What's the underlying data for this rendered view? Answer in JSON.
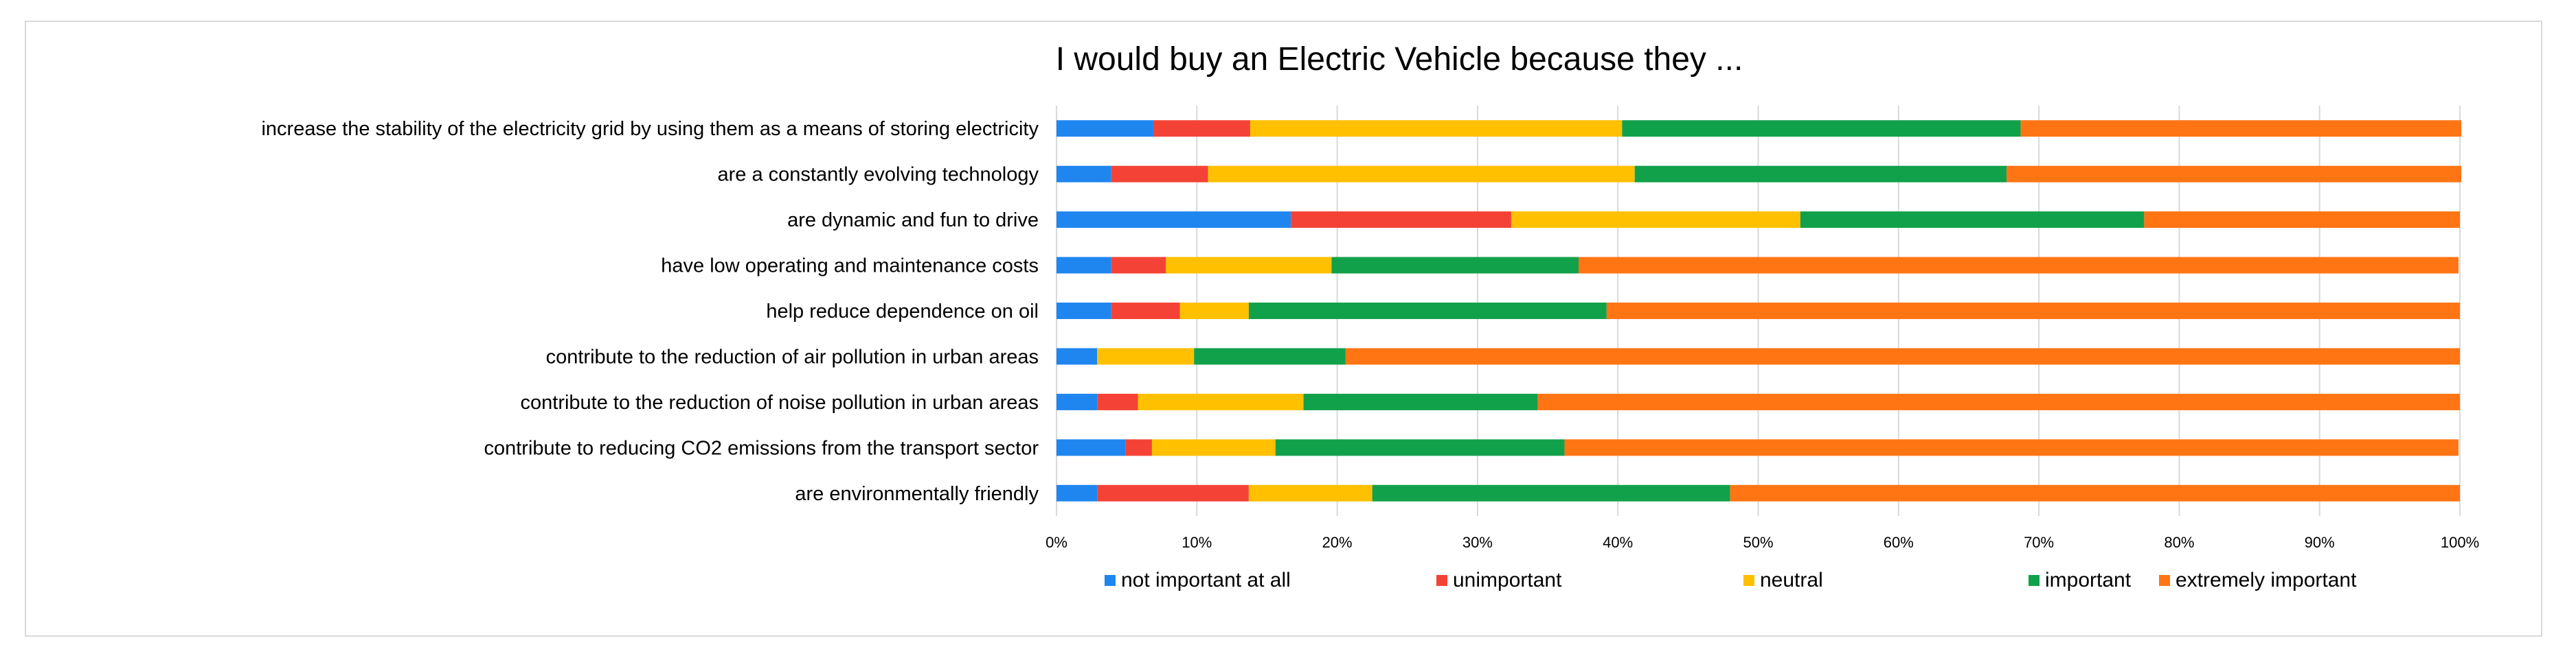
{
  "chart_data": {
    "type": "bar",
    "orientation": "horizontal",
    "stacked": "percent",
    "title": "I would buy an Electric Vehicle because they ...",
    "xlabel": "",
    "ylabel": "",
    "xlim": [
      0,
      100
    ],
    "x_ticks": [
      "0%",
      "10%",
      "20%",
      "30%",
      "40%",
      "50%",
      "60%",
      "70%",
      "80%",
      "90%",
      "100%"
    ],
    "grid": "vertical",
    "legend_position": "bottom",
    "categories": [
      "increase the stability of the electricity grid by using them as a means of storing electricity",
      "are a constantly evolving technology",
      "are dynamic and fun to drive",
      "have low operating and maintenance costs",
      "help reduce dependence on oil",
      "contribute to the reduction of air pollution in urban areas",
      "contribute to the reduction of noise pollution in urban areas",
      "contribute to reducing  CO2 emissions from the transport sector",
      "are environmentally friendly"
    ],
    "series": [
      {
        "name": "not important at all",
        "color": "#1f86f0",
        "values": [
          6.9,
          3.9,
          16.7,
          3.9,
          3.9,
          2.9,
          2.9,
          4.9,
          2.9
        ]
      },
      {
        "name": "unimportant",
        "color": "#f44336",
        "values": [
          6.9,
          6.9,
          15.7,
          3.9,
          4.9,
          0.0,
          2.9,
          1.9,
          10.8
        ]
      },
      {
        "name": "neutral",
        "color": "#ffc000",
        "values": [
          26.5,
          30.4,
          20.6,
          11.8,
          4.9,
          6.9,
          11.8,
          8.8,
          8.8
        ]
      },
      {
        "name": "important",
        "color": "#12a14b",
        "values": [
          28.4,
          26.5,
          24.5,
          17.6,
          25.5,
          10.8,
          16.7,
          20.6,
          25.5
        ]
      },
      {
        "name": "extremely important",
        "color": "#ff7514",
        "values": [
          31.4,
          32.4,
          22.5,
          62.7,
          60.8,
          79.4,
          65.7,
          63.7,
          52.0
        ]
      }
    ]
  }
}
